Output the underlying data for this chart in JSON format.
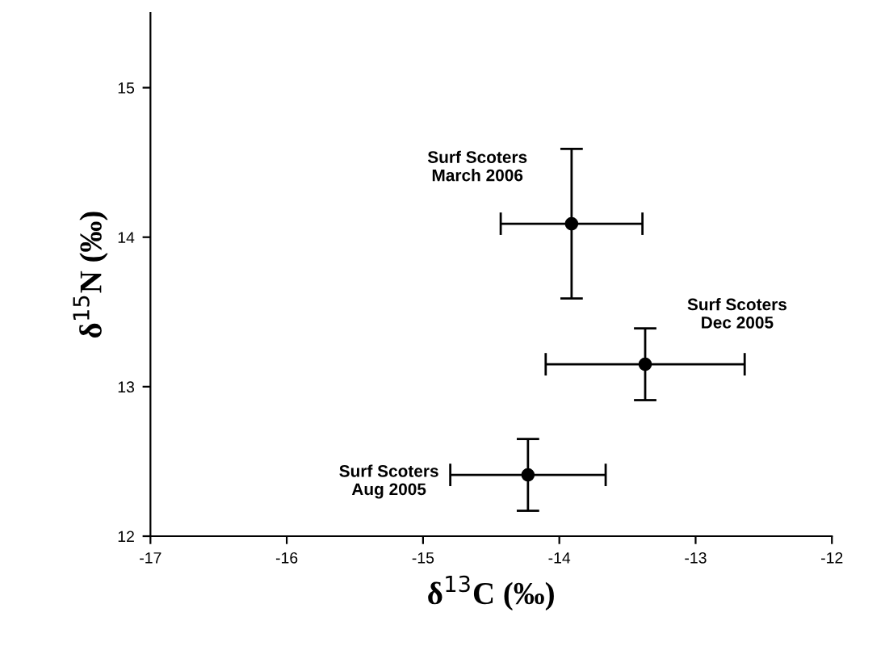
{
  "chart_data": {
    "type": "scatter",
    "xlabel": "δ$^{13}$C (‰)",
    "ylabel": "δ$^{15}$N (‰)",
    "x": [
      -13.91,
      -13.37,
      -14.23
    ],
    "values": [
      14.09,
      13.15,
      12.41
    ],
    "errors": [
      0.5,
      0.24,
      0.24
    ],
    "xerrors": [
      0.52,
      0.73,
      0.57
    ],
    "color": "#000000",
    "marker": "circle",
    "xlim": [
      -17,
      -12
    ],
    "xticks": [
      {
        "value": -17,
        "label": "-17"
      },
      {
        "value": -16,
        "label": "-16"
      },
      {
        "value": -15,
        "label": "-15"
      },
      {
        "value": -14,
        "label": "-14"
      },
      {
        "value": -13,
        "label": "-13"
      },
      {
        "value": -12,
        "label": "-12"
      }
    ],
    "ylim": [
      12,
      15.5
    ],
    "yticks": [
      12,
      13,
      14,
      15
    ],
    "grid": false,
    "legend": false,
    "annotations": [
      "Surf Scoters\nMarch 2006",
      "Surf Scoters\nDec 2005",
      "Surf Scoters\nAug 2005"
    ]
  }
}
